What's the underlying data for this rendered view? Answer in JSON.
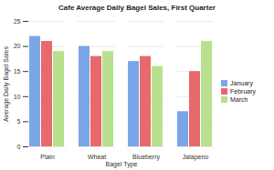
{
  "chart_data": {
    "type": "bar",
    "title": "Cafe Average Daily Bagel Sales, First Quarter",
    "x_label": "Bagel Type",
    "y_label": "Average Daily Bagel Sales",
    "categories": [
      "Plain",
      "Wheat",
      "Blueberry",
      "Jalapeno"
    ],
    "series": [
      {
        "name": "January",
        "color": "#7aa6e8",
        "values": [
          22,
          20,
          17,
          7
        ]
      },
      {
        "name": "February",
        "color": "#e8696b",
        "values": [
          21,
          18,
          18,
          15
        ]
      },
      {
        "name": "March",
        "color": "#b8e08e",
        "values": [
          19,
          19,
          16,
          21
        ]
      }
    ],
    "ylim": [
      0,
      25
    ],
    "yticks": [
      0,
      5,
      10,
      15,
      20,
      25
    ],
    "grid": true,
    "legend": "right"
  }
}
